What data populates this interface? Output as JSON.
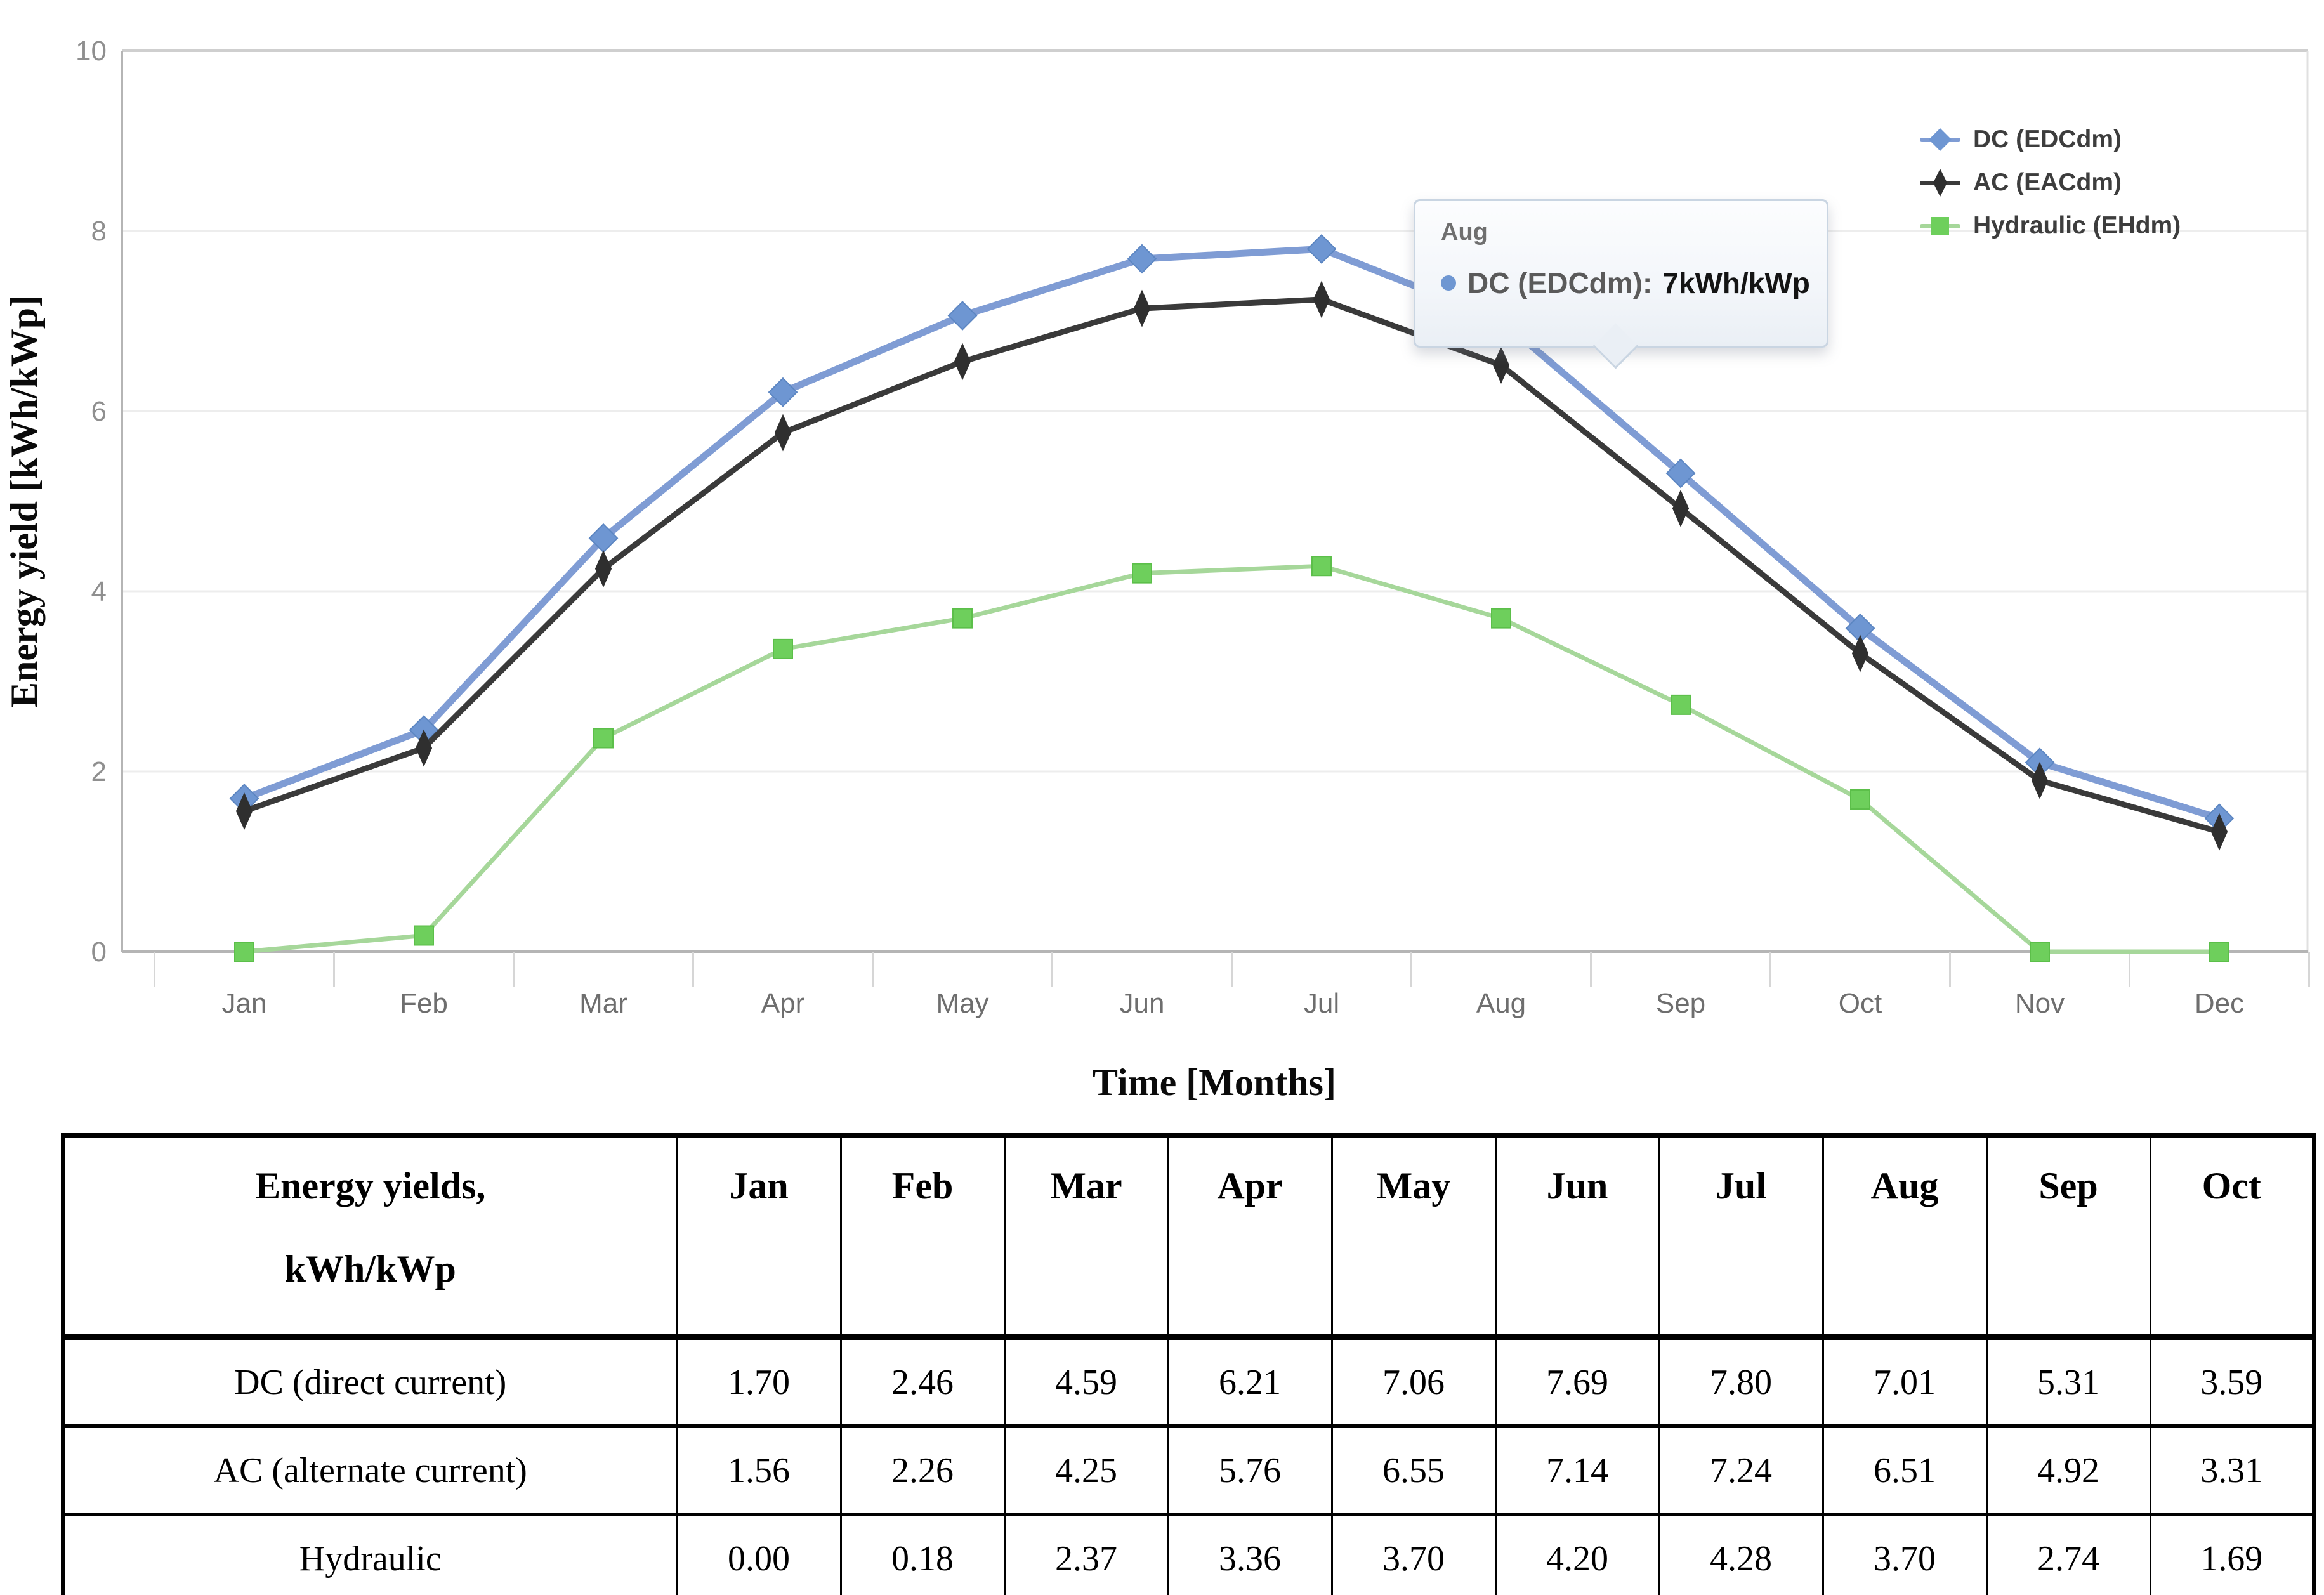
{
  "chart": {
    "y_ticks": [
      0,
      2,
      4,
      6,
      8,
      10
    ],
    "legend": [
      {
        "label": "DC (EDCdm)",
        "marker": "diamond",
        "marker_color": "#6e96d2",
        "line_color": "#7f9cd4"
      },
      {
        "label": "AC (EACdm)",
        "marker": "thin-diamond",
        "marker_color": "#2f2f2f",
        "line_color": "#3a3a3a"
      },
      {
        "label": "Hydraulic (EHdm)",
        "marker": "square",
        "marker_color": "#6ecf5c",
        "line_color": "#a6d79a"
      }
    ],
    "tooltip": {
      "title": "Aug",
      "series": "DC (EDCdm):",
      "value": "7kWh/kWp",
      "dot_color": "#6f97d2"
    }
  },
  "chart_data": {
    "type": "line",
    "title": "",
    "xlabel": "Time [Months]",
    "ylabel": "Energy yield [kWh/kWp]",
    "ylim": [
      0,
      10
    ],
    "grid": "faint-horizontal",
    "legend_position": "top-right",
    "categories": [
      "Jan",
      "Feb",
      "Mar",
      "Apr",
      "May",
      "Jun",
      "Jul",
      "Aug",
      "Sep",
      "Oct",
      "Nov",
      "Dec"
    ],
    "series": [
      {
        "name": "DC (EDCdm)",
        "marker": "diamond",
        "marker_color": "#6e96d2",
        "marker_edge": "#5c86c2",
        "line_color": "#7f9cd4",
        "line_width": 11,
        "values": [
          1.7,
          2.46,
          4.59,
          6.21,
          7.06,
          7.69,
          7.8,
          7.01,
          5.31,
          3.59,
          2.1,
          1.48
        ]
      },
      {
        "name": "AC (EACdm)",
        "marker": "thin-diamond",
        "marker_color": "#2f2f2f",
        "marker_edge": "#2f2f2f",
        "line_color": "#3a3a3a",
        "line_width": 9,
        "values": [
          1.56,
          2.26,
          4.25,
          5.76,
          6.55,
          7.14,
          7.24,
          6.51,
          4.92,
          3.31,
          1.9,
          1.33
        ]
      },
      {
        "name": "Hydraulic (EHdm)",
        "marker": "square",
        "marker_color": "#6ecf5c",
        "marker_edge": "#5cbf4a",
        "line_color": "#a6d79a",
        "line_width": 7,
        "values": [
          0.0,
          0.18,
          2.37,
          3.36,
          3.7,
          4.2,
          4.28,
          3.7,
          2.74,
          1.69,
          0.0,
          0.0
        ]
      }
    ]
  },
  "table": {
    "header_col_line1": "Energy yields,",
    "header_col_line2": "kWh/kWp",
    "columns": [
      "Jan",
      "Feb",
      "Mar",
      "Apr",
      "May",
      "Jun",
      "Jul",
      "Aug",
      "Sep",
      "Oct"
    ],
    "rows": [
      {
        "label": "DC (direct current)",
        "values": [
          "1.70",
          "2.46",
          "4.59",
          "6.21",
          "7.06",
          "7.69",
          "7.80",
          "7.01",
          "5.31",
          "3.59"
        ]
      },
      {
        "label": "AC (alternate current)",
        "values": [
          "1.56",
          "2.26",
          "4.25",
          "5.76",
          "6.55",
          "7.14",
          "7.24",
          "6.51",
          "4.92",
          "3.31"
        ]
      },
      {
        "label": "Hydraulic",
        "values": [
          "0.00",
          "0.18",
          "2.37",
          "3.36",
          "3.70",
          "4.20",
          "4.28",
          "3.70",
          "2.74",
          "1.69"
        ]
      }
    ]
  }
}
